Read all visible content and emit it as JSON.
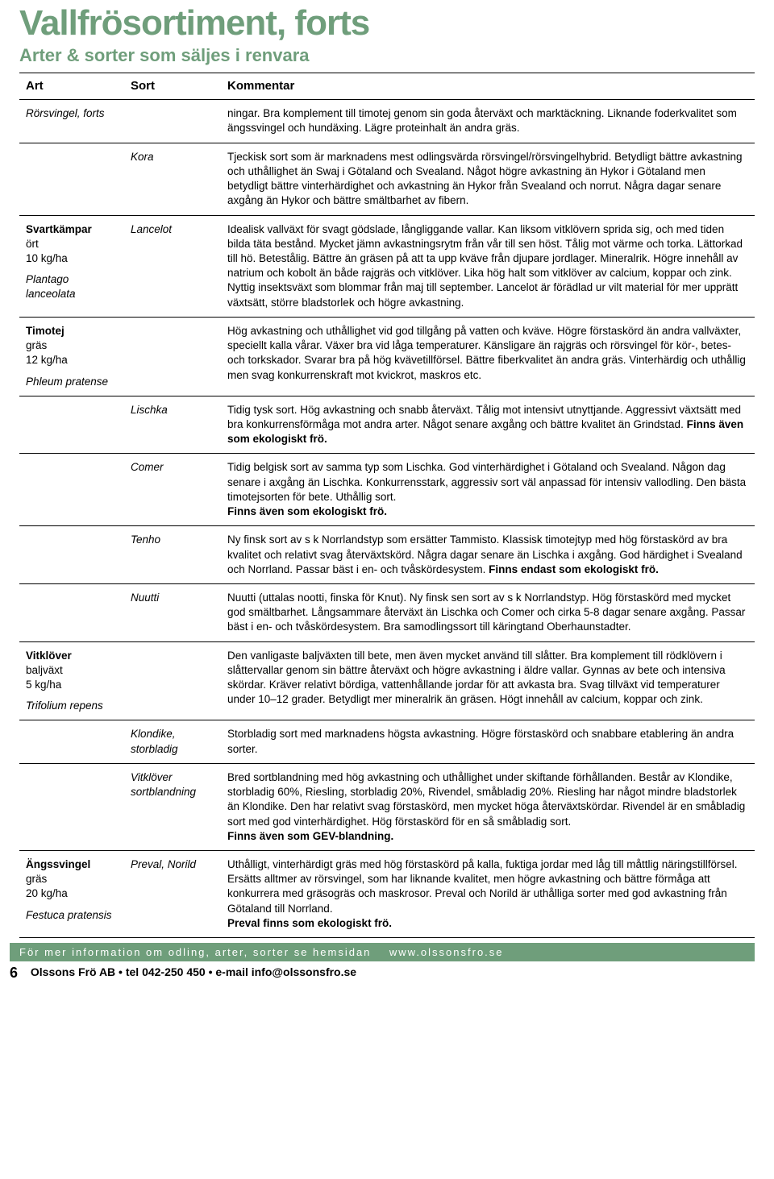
{
  "title": "Vallfrösortiment, forts",
  "subtitle": "Arter & sorter som säljes i renvara",
  "headers": {
    "art": "Art",
    "sort": "Sort",
    "kommentar": "Kommentar"
  },
  "rows": [
    {
      "art_name": "Rörsvingel, forts",
      "art_name_italic": true,
      "sort": "",
      "comment": "ningar. Bra komplement till timotej genom sin goda återväxt och marktäckning. Liknande foderkvalitet som ängssvingel och hundäxing. Lägre proteinhalt än andra gräs."
    },
    {
      "sort": "Kora",
      "comment": "Tjeckisk sort som är marknadens mest odlingsvärda rörsvingel/rörsvingelhybrid. Betydligt bättre avkastning och uthållighet än Swaj i Götaland och Svealand. Något högre avkastning än Hykor i Götaland men betydligt bättre vinterhärdighet och avkastning än Hykor från Svealand och norrut. Några dagar senare axgång än Hykor och bättre smältbarhet av fibern."
    },
    {
      "art_name": "Svartkämpar",
      "art_type": "ört",
      "art_rate": "10 kg/ha",
      "art_latin": "Plantago lanceolata",
      "sort": "Lancelot",
      "comment": "Idealisk vallväxt för svagt gödslade, långliggande vallar. Kan liksom vitklövern sprida sig, och med tiden bilda täta bestånd. Mycket jämn avkastningsrytm  från vår till sen höst. Tålig mot värme och torka. Lättorkad till hö. Betestålig. Bättre än gräsen på att ta upp kväve från djupare jordlager. Mineralrik. Högre innehåll av natrium och kobolt än både rajgräs och vitklöver. Lika hög halt som vitklöver av calcium, koppar och zink. Nyttig insektsväxt som blommar från maj till september. Lancelot är förädlad ur vilt material för mer upprätt växtsätt, större bladstorlek och högre avkastning."
    },
    {
      "art_name": "Timotej",
      "art_type": "gräs",
      "art_rate": "12 kg/ha",
      "art_latin": "Phleum pratense",
      "sort": "",
      "comment": "Hög avkastning och uthållighet vid god tillgång på vatten och kväve. Högre förstaskörd än andra vallväxter, speciellt kalla vårar. Växer bra vid låga temperaturer. Känsligare än rajgräs och rörsvingel för kör-, betes- och torkskador. Svarar bra på hög kvävetillförsel. Bättre fiberkvalitet än andra gräs. Vinterhärdig och uthållig men svag konkurrenskraft mot kvickrot, maskros etc."
    },
    {
      "sort": "Lischka",
      "comment": "Tidig tysk sort. Hög avkastning och snabb återväxt. Tålig mot intensivt utnyttjande. Aggressivt växtsätt med bra konkurrensförmåga mot andra arter. Något senare axgång och bättre kvalitet än Grindstad. ",
      "bold_suffix": "Finns även som ekologiskt frö."
    },
    {
      "sort": "Comer",
      "comment": "Tidig belgisk sort av samma typ som Lischka. God vinterhärdighet i Götaland och Svealand. Någon dag senare i axgång än Lischka. Konkurrensstark, aggressiv sort väl anpassad för intensiv vallodling. Den bästa timotejsorten för bete. Uthållig sort.",
      "bold_suffix": "Finns även som ekologiskt frö."
    },
    {
      "sort": "Tenho",
      "comment": "Ny finsk sort av s k Norrlandstyp som ersätter Tammisto. Klassisk timotejtyp med hög förstaskörd av bra kvalitet och relativt svag återväxtskörd. Några dagar senare än Lischka i axgång. God härdighet i Svealand och Norrland. Passar bäst i en- och tvåskördesystem. ",
      "bold_suffix": "Finns endast som ekologiskt frö."
    },
    {
      "sort": "Nuutti",
      "comment": "Nuutti (uttalas nootti, finska för Knut). Ny finsk sen sort av s k Norrlandstyp. Hög förstaskörd med mycket god smältbarhet. Långsammare återväxt än Lischka och Comer och cirka 5-8 dagar senare axgång. Passar bäst i en- och tvåskördesystem. Bra samodlingssort till käringtand Oberhaunstadter."
    },
    {
      "art_name": "Vitklöver",
      "art_type": "baljväxt",
      "art_rate": "5 kg/ha",
      "art_latin": "Trifolium repens",
      "sort": "",
      "comment": "Den vanligaste baljväxten till bete, men även mycket använd till slåtter. Bra komplement till rödklövern i slåttervallar genom sin bättre återväxt och högre avkastning i äldre vallar. Gynnas av bete och intensiva skördar. Kräver relativt bördiga, vattenhållande jordar för att avkasta bra. Svag tillväxt vid temperaturer under 10–12 grader. Betydligt mer mineralrik än gräsen. Högt innehåll av calcium, koppar och zink."
    },
    {
      "sort": "Klondike, storbladig",
      "comment": "Storbladig sort med marknadens högsta avkastning. Högre förstaskörd och snabbare etablering än andra sorter."
    },
    {
      "sort": "Vitklöver sortblandning",
      "comment": "Bred sortblandning med hög avkastning och uthållighet under skiftande förhållanden. Består av Klondike, storbladig 60%, Riesling, storbladig 20%, Rivendel, småbladig 20%. Riesling har något mindre bladstorlek än Klondike. Den har relativt svag förstaskörd, men mycket höga återväxtskördar. Rivendel är en småbladig sort med god vinterhärdighet. Hög förstaskörd för en så småbladig sort.",
      "bold_suffix": "Finns även som GEV-blandning."
    },
    {
      "art_name": "Ängssvingel",
      "art_type": "gräs",
      "art_rate": "20 kg/ha",
      "art_latin": "Festuca pratensis",
      "sort": "Preval, Norild",
      "comment": "Uthålligt, vinterhärdigt gräs med hög förstaskörd på kalla, fuktiga jordar med låg till måttlig näringstillförsel. Ersätts alltmer av rörsvingel, som har liknande kvalitet, men högre avkastning och bättre förmåga att konkurrera med gräsogräs och maskrosor. Preval och Norild är uthålliga sorter med god avkastning från Götaland till Norrland.",
      "bold_suffix": "Preval finns som ekologiskt frö."
    }
  ],
  "footer_bar_left": "För mer information om odling, arter, sorter se hemsidan",
  "footer_bar_right": "www.olssonsfro.se",
  "page_number": "6",
  "footer_company": "Olssons Frö AB • tel 042-250 450 • e-mail info@olssonsfro.se"
}
